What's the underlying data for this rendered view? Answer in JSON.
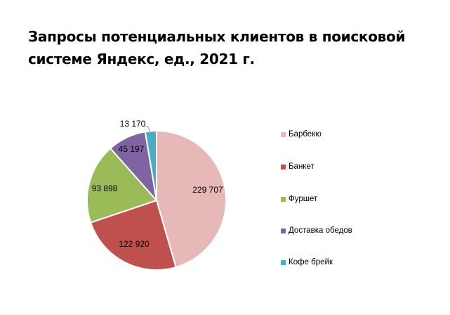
{
  "chart_data": {
    "type": "pie",
    "title": "Запросы потенциальных клиентов в поисковой системе Яндекс, ед., 2021 г.",
    "categories": [
      "Барбекю",
      "Банкет",
      "Фуршет",
      "Доставка обедов",
      "Кофе брейк"
    ],
    "values": [
      229707,
      122920,
      93898,
      45197,
      13170
    ],
    "labels": [
      "229 707",
      "122 920",
      "93 898",
      "45 197",
      "13 170"
    ],
    "colors": [
      "#E6B9B8",
      "#C0504D",
      "#9BBB59",
      "#8064A2",
      "#4BACC6"
    ],
    "legend_position": "right"
  },
  "title_line1": "Запросы потенциальных клиентов в поисковой",
  "title_line2": "системе Яндекс, ед., 2021 г.",
  "legend": [
    {
      "label": "Барбекю",
      "color": "#E6B9B8"
    },
    {
      "label": "Банкет",
      "color": "#C0504D"
    },
    {
      "label": "Фуршет",
      "color": "#9BBB59"
    },
    {
      "label": "Доставка обедов",
      "color": "#8064A2"
    },
    {
      "label": "Кофе брейк",
      "color": "#4BACC6"
    }
  ]
}
